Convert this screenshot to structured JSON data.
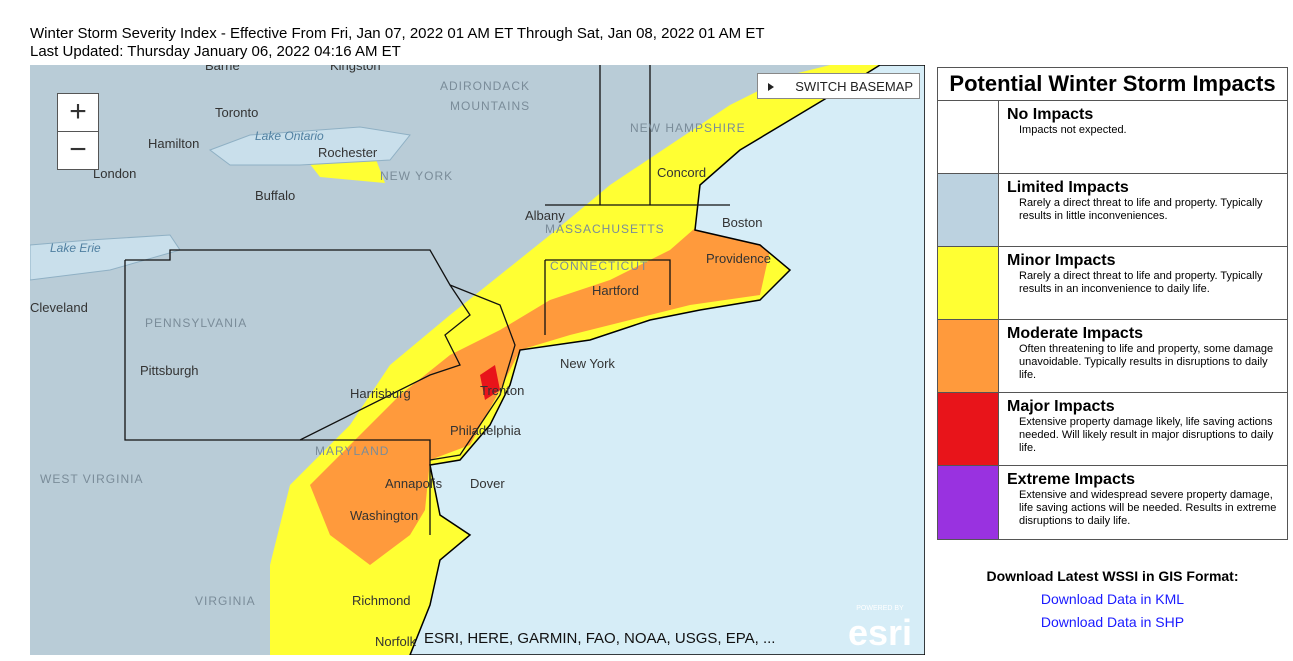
{
  "header": {
    "title": "Winter Storm Severity Index - Effective From Fri, Jan 07, 2022 01 AM ET Through Sat, Jan 08, 2022 01 AM ET",
    "updated": "Last Updated: Thursday January 06, 2022 04:16 AM ET"
  },
  "map": {
    "zoom_in": "+",
    "zoom_out": "−",
    "basemap_button": "SWITCH BASEMAP",
    "attribution": "ESRI, HERE, GARMIN, FAO, NOAA, USGS, EPA, ...",
    "logo_top": "POWERED BY",
    "logo": "esri",
    "labels": [
      "Barrie",
      "Kingston",
      "Toronto",
      "Hamilton",
      "Lake Ontario",
      "Rochester",
      "London",
      "NEW YORK",
      "Buffalo",
      "Albany",
      "Boston",
      "Lake Erie",
      "MASSACHUSETTS",
      "CONNECTICUT",
      "Providence",
      "Hartford",
      "Cleveland",
      "PENNSYLVANIA",
      "Pittsburgh",
      "New York",
      "Harrisburg",
      "Trenton",
      "Philadelphia",
      "MARYLAND",
      "WEST VIRGINIA",
      "Annapolis",
      "Dover",
      "Washington",
      "VIRGINIA",
      "Richmond",
      "Norfolk",
      "ADIRONDACK",
      "MOUNTAINS",
      "NEW HAMPSHIRE",
      "Concord"
    ]
  },
  "legend": {
    "title": "Potential Winter Storm Impacts",
    "items": [
      {
        "name": "No Impacts",
        "description": "Impacts not expected."
      },
      {
        "name": "Limited Impacts",
        "description": "Rarely a direct threat to life and property. Typically results in little inconveniences."
      },
      {
        "name": "Minor Impacts",
        "description": "Rarely a direct threat to life and property. Typically results in an inconvenience to daily life."
      },
      {
        "name": "Moderate Impacts",
        "description": "Often threatening to life and property, some damage unavoidable. Typically results in disruptions to daily life."
      },
      {
        "name": "Major Impacts",
        "description": "Extensive property damage likely, life saving actions needed. Will likely result in major disruptions to daily life."
      },
      {
        "name": "Extreme Impacts",
        "description": "Extensive and widespread severe property damage, life saving actions will be needed. Results in extreme disruptions to daily life."
      }
    ]
  },
  "downloads": {
    "title": "Download Latest WSSI in GIS Format:",
    "links": [
      "Download Data in KML",
      "Download Data in SHP"
    ]
  }
}
